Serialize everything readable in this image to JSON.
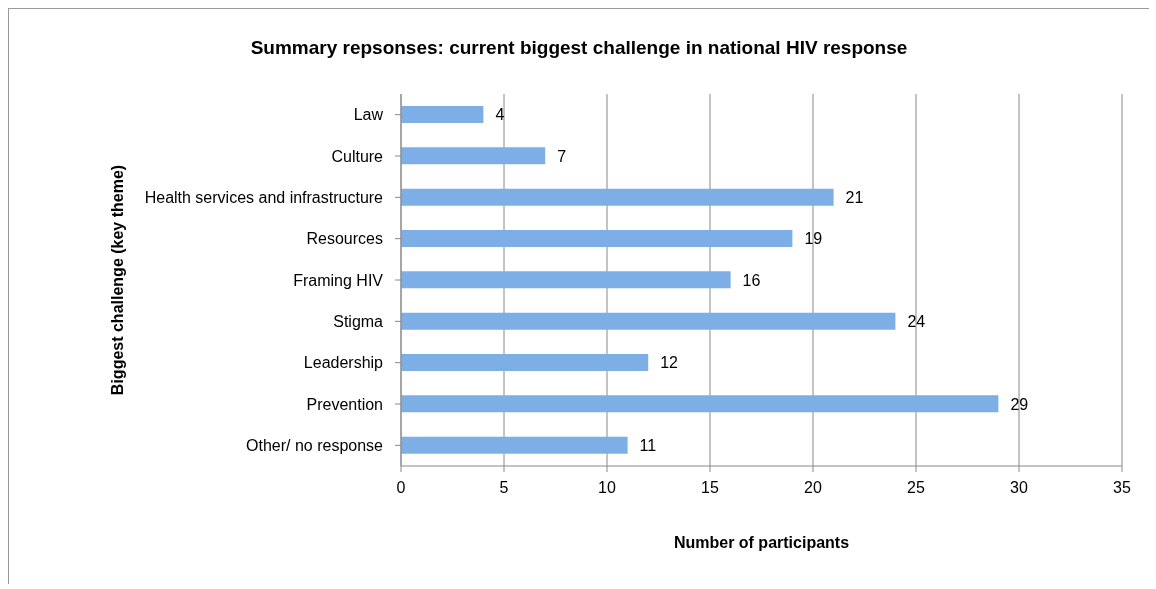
{
  "chart_data": {
    "type": "bar",
    "orientation": "horizontal",
    "title": "Summary repsonses: current biggest challenge in national HIV response",
    "xlabel": "Number of participants",
    "ylabel": "Biggest challenge (key theme)",
    "categories": [
      "Law",
      "Culture",
      "Health services and infrastructure",
      "Resources",
      "Framing HIV",
      "Stigma",
      "Leadership",
      "Prevention",
      "Other/ no response"
    ],
    "values": [
      4,
      7,
      21,
      19,
      16,
      24,
      12,
      29,
      11
    ],
    "color": "#7eaee6",
    "xlim": [
      0,
      35
    ],
    "xticks": [
      0,
      5,
      10,
      15,
      20,
      25,
      30,
      35
    ],
    "grid": "x",
    "data_labels": true,
    "legend": false
  }
}
